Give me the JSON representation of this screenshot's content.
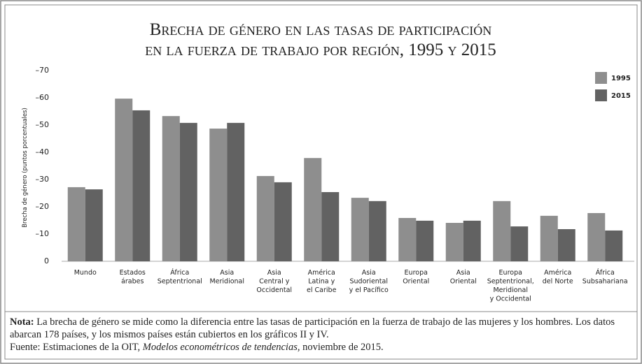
{
  "chart_data": {
    "type": "bar",
    "title": [
      "Brecha de género en las tasas de participación",
      "en la fuerza de trabajo por región, 1995 y 2015"
    ],
    "y_label": "Brecha de género (puntos porcentuales)",
    "categories": [
      [
        "Mundo"
      ],
      [
        "Estados",
        "árabes"
      ],
      [
        "África",
        "Septentrional"
      ],
      [
        "Asia",
        "Meridional"
      ],
      [
        "Asia",
        "Central y",
        "Occidental"
      ],
      [
        "América",
        "Latina y",
        "el Caribe"
      ],
      [
        "Asia",
        "Sudoriental",
        "y el Pacífico"
      ],
      [
        "Europa",
        "Oriental"
      ],
      [
        "Asia",
        "Oriental"
      ],
      [
        "Europa",
        "Septentrional,",
        "Meridional",
        "y Occidental"
      ],
      [
        "América",
        "del Norte"
      ],
      [
        "África",
        "Subsahariana"
      ]
    ],
    "series": [
      {
        "name": "1995",
        "color": "#8e8e8e",
        "values": [
          -27.2,
          -59.7,
          -53.3,
          -48.7,
          -31.3,
          -37.9,
          -23.3,
          -15.9,
          -14.1,
          -22.1,
          -16.7,
          -17.7
        ]
      },
      {
        "name": "2015",
        "color": "#626262",
        "values": [
          -26.4,
          -55.4,
          -50.8,
          -50.8,
          -29.0,
          -25.4,
          -22.1,
          -14.9,
          -14.9,
          -12.8,
          -11.8,
          -11.3
        ]
      }
    ],
    "ylim": [
      0,
      -70
    ],
    "yticks": [
      {
        "value": -70,
        "label": "–70"
      },
      {
        "value": -60,
        "label": "–60"
      },
      {
        "value": -50,
        "label": "–50"
      },
      {
        "value": -40,
        "label": "–40"
      },
      {
        "value": -30,
        "label": "–30"
      },
      {
        "value": -20,
        "label": "–20"
      },
      {
        "value": -10,
        "label": "–10"
      },
      0
    ],
    "legend": "top-right",
    "note": {
      "label": "Nota:",
      "text": " La brecha de género se mide como la diferencia entre las tasas de participación en la fuerza de trabajo de las mujeres y los hombres. Los datos abarcan 178 países, y los mismos países están cubiertos en los gráficos II y IV."
    },
    "source": {
      "before": "Fuente: Estimaciones de la OIT, ",
      "italic": "Modelos econométricos de tendencias",
      "after": ", noviembre de 2015."
    }
  }
}
